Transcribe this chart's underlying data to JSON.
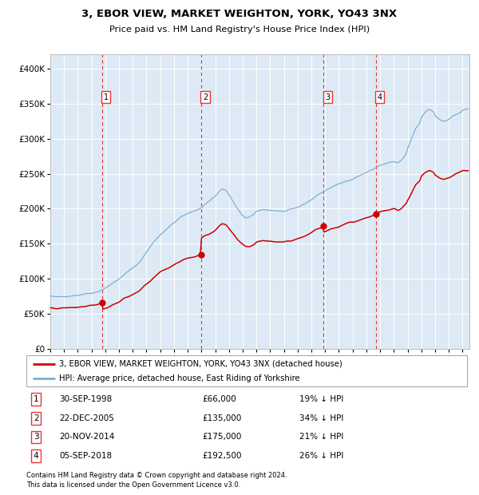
{
  "title": "3, EBOR VIEW, MARKET WEIGHTON, YORK, YO43 3NX",
  "subtitle": "Price paid vs. HM Land Registry's House Price Index (HPI)",
  "legend_line1": "3, EBOR VIEW, MARKET WEIGHTON, YORK, YO43 3NX (detached house)",
  "legend_line2": "HPI: Average price, detached house, East Riding of Yorkshire",
  "footer1": "Contains HM Land Registry data © Crown copyright and database right 2024.",
  "footer2": "This data is licensed under the Open Government Licence v3.0.",
  "transactions": [
    {
      "num": 1,
      "date": "30-SEP-1998",
      "price": 66000,
      "pct": "19% ↓ HPI",
      "x_year": 1998.75
    },
    {
      "num": 2,
      "date": "22-DEC-2005",
      "price": 135000,
      "pct": "34% ↓ HPI",
      "x_year": 2005.97
    },
    {
      "num": 3,
      "date": "20-NOV-2014",
      "price": 175000,
      "pct": "21% ↓ HPI",
      "x_year": 2014.89
    },
    {
      "num": 4,
      "date": "05-SEP-2018",
      "price": 192500,
      "pct": "26% ↓ HPI",
      "x_year": 2018.68
    }
  ],
  "hpi_anchors": [
    [
      1995.0,
      75000
    ],
    [
      1995.5,
      74000
    ],
    [
      1996.0,
      75500
    ],
    [
      1996.5,
      76000
    ],
    [
      1997.0,
      77000
    ],
    [
      1997.5,
      78500
    ],
    [
      1998.0,
      80000
    ],
    [
      1998.5,
      82000
    ],
    [
      1999.0,
      87000
    ],
    [
      1999.5,
      93000
    ],
    [
      2000.0,
      100000
    ],
    [
      2000.5,
      108000
    ],
    [
      2001.0,
      115000
    ],
    [
      2001.5,
      124000
    ],
    [
      2002.0,
      138000
    ],
    [
      2002.5,
      152000
    ],
    [
      2003.0,
      163000
    ],
    [
      2003.5,
      172000
    ],
    [
      2004.0,
      180000
    ],
    [
      2004.5,
      188000
    ],
    [
      2005.0,
      193000
    ],
    [
      2005.5,
      197000
    ],
    [
      2006.0,
      202000
    ],
    [
      2006.5,
      210000
    ],
    [
      2007.0,
      218000
    ],
    [
      2007.3,
      225000
    ],
    [
      2007.5,
      228000
    ],
    [
      2007.8,
      226000
    ],
    [
      2008.0,
      220000
    ],
    [
      2008.3,
      210000
    ],
    [
      2008.6,
      200000
    ],
    [
      2008.9,
      192000
    ],
    [
      2009.2,
      187000
    ],
    [
      2009.5,
      188000
    ],
    [
      2009.8,
      191000
    ],
    [
      2010.0,
      196000
    ],
    [
      2010.5,
      199000
    ],
    [
      2011.0,
      198000
    ],
    [
      2011.5,
      197000
    ],
    [
      2012.0,
      196000
    ],
    [
      2012.5,
      198000
    ],
    [
      2013.0,
      202000
    ],
    [
      2013.5,
      207000
    ],
    [
      2014.0,
      213000
    ],
    [
      2014.5,
      220000
    ],
    [
      2015.0,
      226000
    ],
    [
      2015.5,
      231000
    ],
    [
      2016.0,
      235000
    ],
    [
      2016.5,
      239000
    ],
    [
      2017.0,
      243000
    ],
    [
      2017.5,
      247000
    ],
    [
      2018.0,
      252000
    ],
    [
      2018.5,
      256000
    ],
    [
      2019.0,
      262000
    ],
    [
      2019.5,
      265000
    ],
    [
      2020.0,
      267000
    ],
    [
      2020.3,
      265000
    ],
    [
      2020.6,
      270000
    ],
    [
      2020.9,
      278000
    ],
    [
      2021.0,
      285000
    ],
    [
      2021.3,
      300000
    ],
    [
      2021.6,
      315000
    ],
    [
      2021.9,
      322000
    ],
    [
      2022.0,
      330000
    ],
    [
      2022.3,
      338000
    ],
    [
      2022.6,
      342000
    ],
    [
      2022.9,
      338000
    ],
    [
      2023.0,
      333000
    ],
    [
      2023.3,
      328000
    ],
    [
      2023.6,
      325000
    ],
    [
      2023.9,
      327000
    ],
    [
      2024.0,
      328000
    ],
    [
      2024.3,
      332000
    ],
    [
      2024.6,
      335000
    ],
    [
      2024.9,
      338000
    ],
    [
      2025.0,
      340000
    ],
    [
      2025.3,
      342000
    ]
  ],
  "hpi_color": "#7ab0d4",
  "price_color": "#cc0000",
  "background_color": "#ddeaf5",
  "plot_bg": "#ffffff",
  "vline_color": "#ee3333",
  "ylim": [
    0,
    420000
  ],
  "xlim_start": 1995.0,
  "xlim_end": 2025.5
}
